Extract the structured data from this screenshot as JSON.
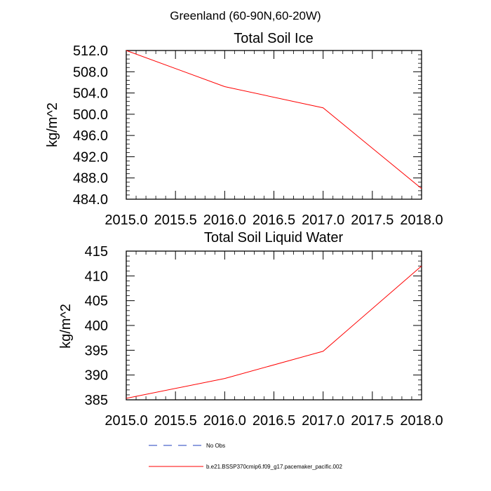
{
  "figure": {
    "title": "Greenland (60-90N,60-20W)"
  },
  "chart_data": [
    {
      "type": "line",
      "title": "Total Soil Ice",
      "xlabel": "",
      "ylabel": "kg/m^2",
      "xlim": [
        2015.0,
        2018.0
      ],
      "ylim": [
        484.0,
        512.0
      ],
      "xticks": [
        "2015.0",
        "2015.5",
        "2016.0",
        "2016.5",
        "2017.0",
        "2017.5",
        "2018.0"
      ],
      "yticks": [
        "484.0",
        "488.0",
        "492.0",
        "496.0",
        "500.0",
        "504.0",
        "508.0",
        "512.0"
      ],
      "series": [
        {
          "name": "b.e21.BSSP370cmip6.f09_g17.pacemaker_pacific.002",
          "color": "#ff0000",
          "x": [
            2015.0,
            2016.0,
            2017.0,
            2018.0
          ],
          "values": [
            512.0,
            505.2,
            501.2,
            486.0
          ]
        }
      ]
    },
    {
      "type": "line",
      "title": "Total Soil Liquid Water",
      "xlabel": "",
      "ylabel": "kg/m^2",
      "xlim": [
        2015.0,
        2018.0
      ],
      "ylim": [
        385,
        415
      ],
      "xticks": [
        "2015.0",
        "2015.5",
        "2016.0",
        "2016.5",
        "2017.0",
        "2017.5",
        "2018.0"
      ],
      "yticks": [
        "385",
        "390",
        "395",
        "400",
        "405",
        "410",
        "415"
      ],
      "series": [
        {
          "name": "b.e21.BSSP370cmip6.f09_g17.pacemaker_pacific.002",
          "color": "#ff0000",
          "x": [
            2015.0,
            2016.0,
            2017.0,
            2018.0
          ],
          "values": [
            385.3,
            389.3,
            394.8,
            412.0
          ]
        }
      ]
    }
  ],
  "legend": {
    "items": [
      {
        "label": "No Obs",
        "color": "#1f3fbf",
        "style": "dashed"
      },
      {
        "label": "b.e21.BSSP370cmip6.f09_g17.pacemaker_pacific.002",
        "color": "#ff0000",
        "style": "solid"
      }
    ]
  }
}
